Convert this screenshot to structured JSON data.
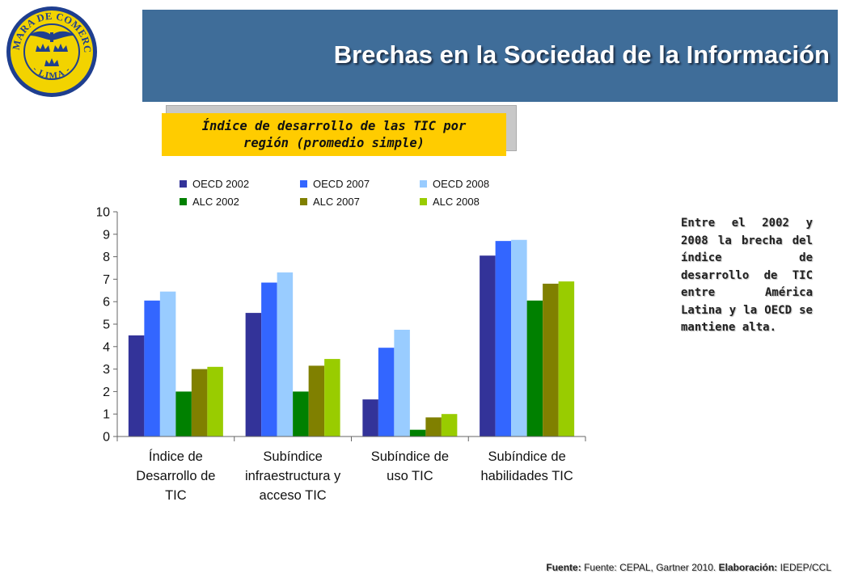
{
  "logo": {
    "ring_text_top": "CÁMARA DE COMERCIO",
    "ring_text_bottom": "- LIMA -",
    "colors": {
      "ring": "#1f3f8f",
      "fill": "#f2d300",
      "crowns": "#1f3f8f"
    }
  },
  "header": {
    "title": "Brechas en la Sociedad de la Información"
  },
  "subtitle": {
    "line1": "Índice de desarrollo de las TIC por",
    "line2": "región (promedio simple)"
  },
  "side_note": {
    "text": "Entre el 2002 y 2008 la brecha del índice de desarrollo de TIC entre América Latina y la OECD se mantiene alta."
  },
  "footer": {
    "label1": "Fuente:",
    "source": "Fuente: CEPAL, Gartner 2010.",
    "label2": "Elaboración:",
    "author": "IEDEP/CCL"
  },
  "chart_data": {
    "type": "bar",
    "title": "",
    "xlabel": "",
    "ylabel": "",
    "ylim": [
      0,
      10
    ],
    "yticks": [
      0,
      1,
      2,
      3,
      4,
      5,
      6,
      7,
      8,
      9,
      10
    ],
    "grid": false,
    "legend_position": "top",
    "categories": [
      [
        "Índice de",
        "Desarrollo de",
        "TIC"
      ],
      [
        "Subíndice",
        "infraestructura y",
        "acceso TIC"
      ],
      [
        "Subíndice de",
        "uso TIC"
      ],
      [
        "Subíndice de",
        "habilidades TIC"
      ]
    ],
    "series": [
      {
        "name": "OECD 2002",
        "color": "#333399",
        "values": [
          4.5,
          5.5,
          1.65,
          8.05
        ]
      },
      {
        "name": "OECD 2007",
        "color": "#3366ff",
        "values": [
          6.05,
          6.85,
          3.95,
          8.7
        ]
      },
      {
        "name": "OECD 2008",
        "color": "#99ccff",
        "values": [
          6.45,
          7.3,
          4.75,
          8.75
        ]
      },
      {
        "name": "ALC 2002",
        "color": "#008000",
        "values": [
          2.0,
          2.0,
          0.3,
          6.05
        ]
      },
      {
        "name": "ALC 2007",
        "color": "#808000",
        "values": [
          3.0,
          3.15,
          0.85,
          6.8
        ]
      },
      {
        "name": "ALC 2008",
        "color": "#99cc00",
        "values": [
          3.1,
          3.45,
          1.0,
          6.9
        ]
      }
    ]
  }
}
